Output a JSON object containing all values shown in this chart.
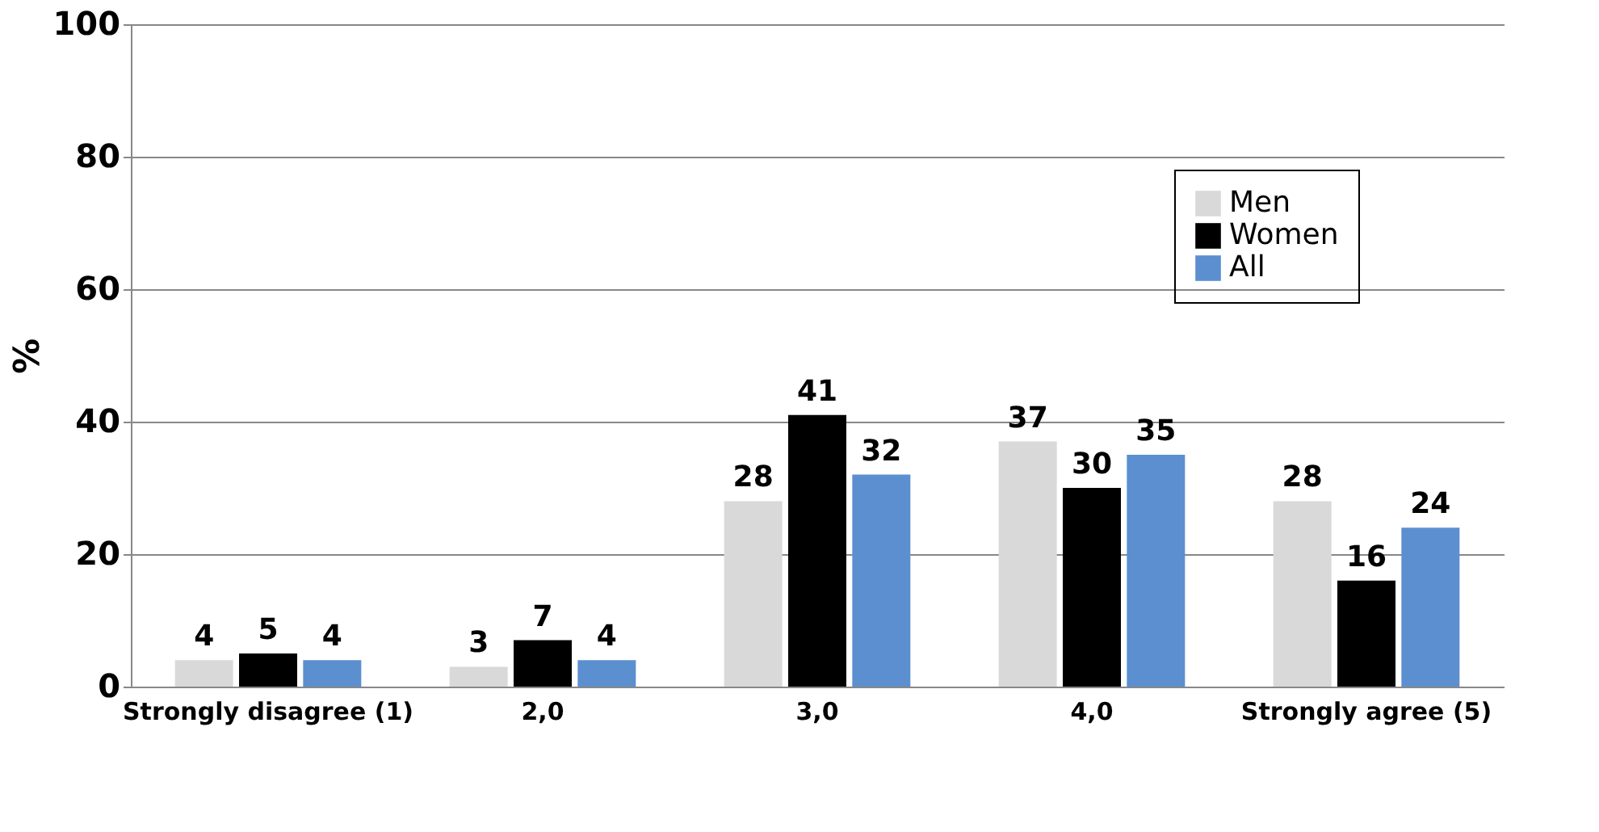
{
  "chart_data": {
    "type": "bar",
    "ylabel": "%",
    "categories": [
      "Strongly disagree (1)",
      "2,0",
      "3,0",
      "4,0",
      "Strongly agree (5)"
    ],
    "series": [
      {
        "name": "Men",
        "color": "#d9d9d9",
        "values": [
          4,
          3,
          28,
          37,
          28
        ]
      },
      {
        "name": "Women",
        "color": "#000000",
        "values": [
          5,
          7,
          41,
          30,
          16
        ]
      },
      {
        "name": "All",
        "color": "#5b8fd0",
        "values": [
          4,
          4,
          32,
          35,
          24
        ]
      }
    ],
    "ylim": [
      0,
      100
    ],
    "yticks": [
      0,
      20,
      40,
      60,
      80,
      100
    ],
    "grid": "y",
    "legend": "top right",
    "data_labels": true
  }
}
